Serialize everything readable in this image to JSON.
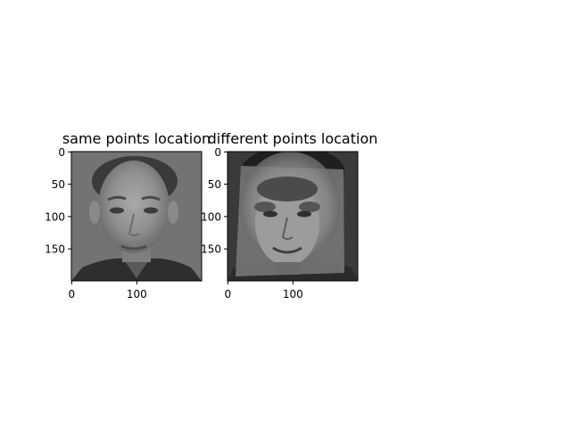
{
  "chart_data": [
    {
      "type": "image",
      "title": "same points location",
      "xticks": [
        "0",
        "100"
      ],
      "yticks": [
        "0",
        "50",
        "100",
        "150"
      ],
      "xlim": [
        0,
        199
      ],
      "ylim": [
        199,
        0
      ],
      "xtick_values": [
        0,
        100
      ],
      "ytick_values": [
        0,
        50,
        100,
        150
      ],
      "image_content": "grayscale averaged face, aligned with same landmark points"
    },
    {
      "type": "image",
      "title": "different points location",
      "xticks": [
        "0",
        "100"
      ],
      "yticks": [
        "0",
        "50",
        "100",
        "150"
      ],
      "xlim": [
        0,
        199
      ],
      "ylim": [
        199,
        0
      ],
      "xtick_values": [
        0,
        100
      ],
      "ytick_values": [
        0,
        50,
        100,
        150
      ],
      "image_content": "grayscale warped face overlay with differing landmark points"
    }
  ]
}
